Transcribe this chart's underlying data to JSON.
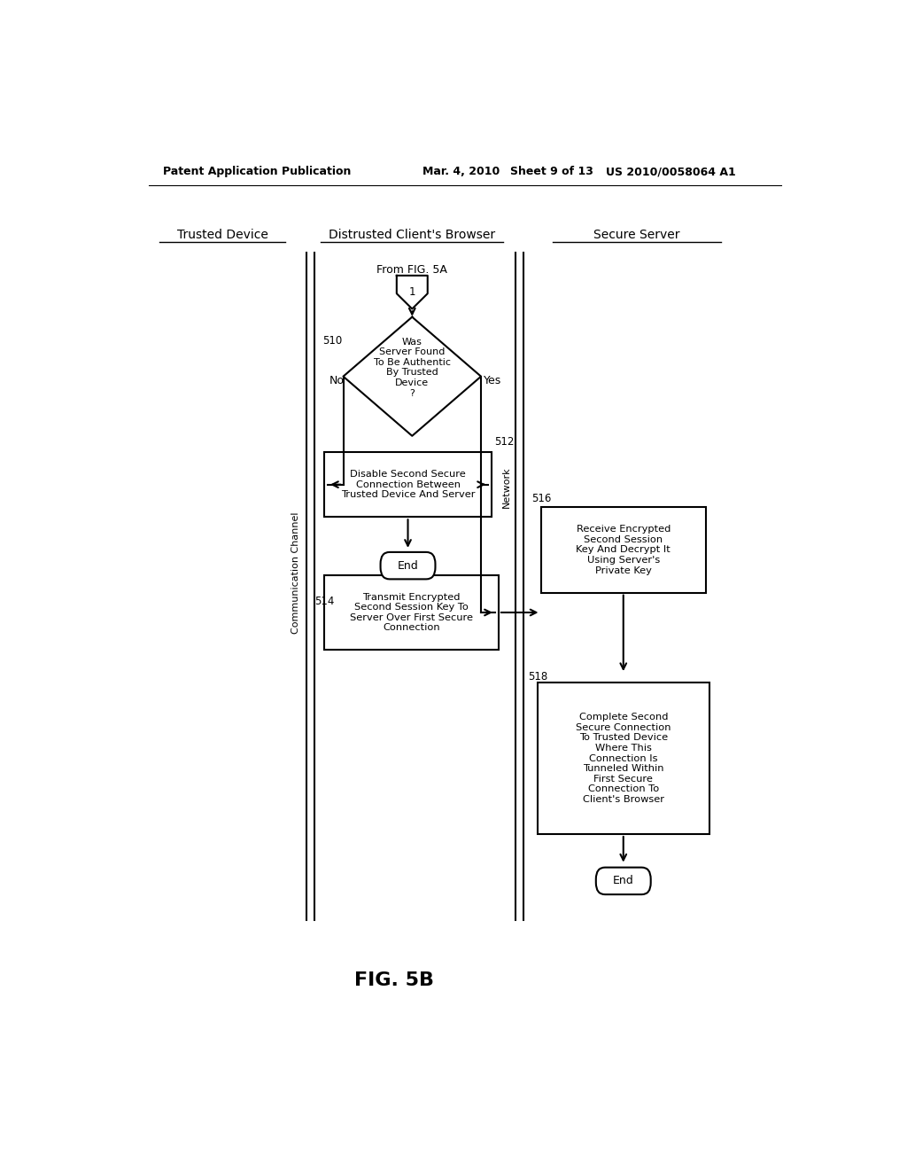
{
  "bg_color": "#ffffff",
  "header_text": "Patent Application Publication",
  "header_date": "Mar. 4, 2010",
  "header_sheet": "Sheet 9 of 13",
  "header_patent": "US 2010/0058064 A1",
  "col_header_trusted": "Trusted Device",
  "col_header_distrusted": "Distrusted Client's Browser",
  "col_header_secure": "Secure Server",
  "comm_channel_label": "Communication Channel",
  "network_label": "Network",
  "figcaption": "FIG. 5B",
  "from_text": "From FIG. 5A",
  "connector_label": "1",
  "label_510": "510",
  "label_512": "512",
  "label_514": "514",
  "label_516": "516",
  "label_518": "518",
  "diamond_text": "Was\nServer Found\nTo Be Authentic\nBy Trusted\nDevice\n?",
  "no_label": "No",
  "yes_label": "Yes",
  "box512_text": "Disable Second Secure\nConnection Between\nTrusted Device And Server",
  "end_label": "End",
  "box514_text": "Transmit Encrypted\nSecond Session Key To\nServer Over First Secure\nConnection",
  "box516_text": "Receive Encrypted\nSecond Session\nKey And Decrypt It\nUsing Server's\nPrivate Key",
  "box518_text": "Complete Second\nSecure Connection\nTo Trusted Device\nWhere This\nConnection Is\nTunneled Within\nFirst Secure\nConnection To\nClient's Browser"
}
